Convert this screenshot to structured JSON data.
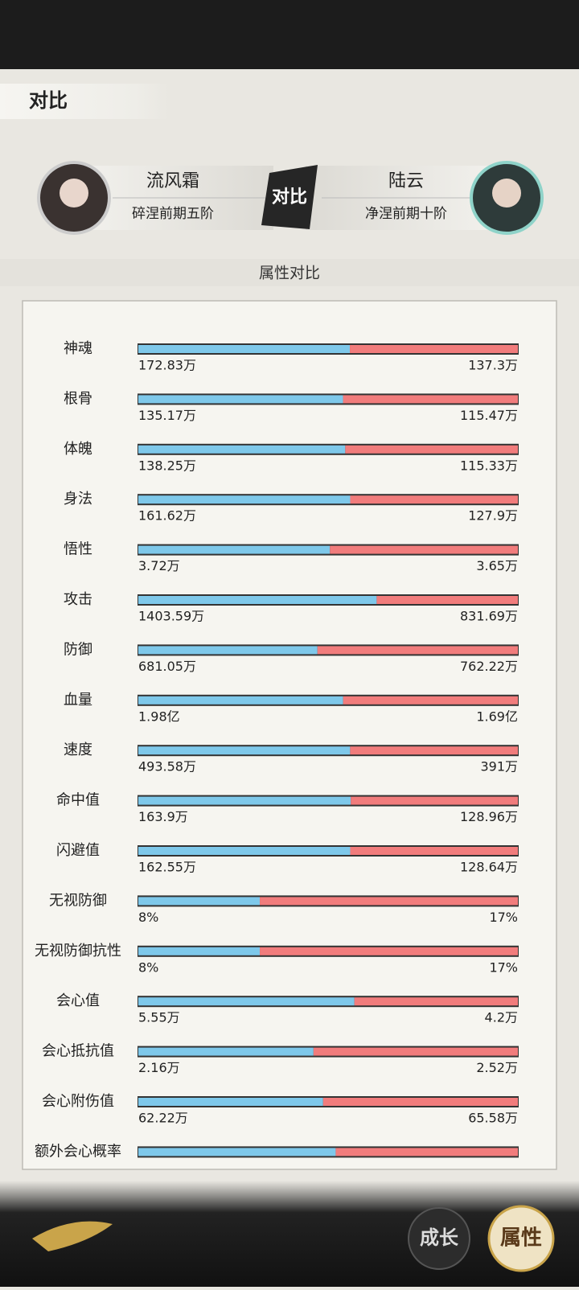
{
  "header": {
    "title": "对比"
  },
  "players": [
    {
      "name": "流风霜",
      "rank": "碎涅前期五阶"
    },
    {
      "name": "陆云",
      "rank": "净涅前期十阶"
    }
  ],
  "vs_badge": "对比",
  "section_title": "属性对比",
  "rows": [
    {
      "label": "神魂",
      "left": {
        "value": 172.83,
        "label": "172.83万"
      },
      "right": {
        "value": 137.3,
        "label": "137.3万"
      }
    },
    {
      "label": "根骨",
      "left": {
        "value": 135.17,
        "label": "135.17万"
      },
      "right": {
        "value": 115.47,
        "label": "115.47万"
      }
    },
    {
      "label": "体魄",
      "left": {
        "value": 138.25,
        "label": "138.25万"
      },
      "right": {
        "value": 115.33,
        "label": "115.33万"
      }
    },
    {
      "label": "身法",
      "left": {
        "value": 161.62,
        "label": "161.62万"
      },
      "right": {
        "value": 127.9,
        "label": "127.9万"
      }
    },
    {
      "label": "悟性",
      "left": {
        "value": 3.72,
        "label": "3.72万"
      },
      "right": {
        "value": 3.65,
        "label": "3.65万"
      }
    },
    {
      "label": "攻击",
      "left": {
        "value": 1403.59,
        "label": "1403.59万"
      },
      "right": {
        "value": 831.69,
        "label": "831.69万"
      }
    },
    {
      "label": "防御",
      "left": {
        "value": 681.05,
        "label": "681.05万"
      },
      "right": {
        "value": 762.22,
        "label": "762.22万"
      }
    },
    {
      "label": "血量",
      "left": {
        "value": 1.98,
        "label": "1.98亿"
      },
      "right": {
        "value": 1.69,
        "label": "1.69亿"
      }
    },
    {
      "label": "速度",
      "left": {
        "value": 493.58,
        "label": "493.58万"
      },
      "right": {
        "value": 391,
        "label": "391万"
      }
    },
    {
      "label": "命中值",
      "left": {
        "value": 163.9,
        "label": "163.9万"
      },
      "right": {
        "value": 128.96,
        "label": "128.96万"
      }
    },
    {
      "label": "闪避值",
      "left": {
        "value": 162.55,
        "label": "162.55万"
      },
      "right": {
        "value": 128.64,
        "label": "128.64万"
      }
    },
    {
      "label": "无视防御",
      "left": {
        "value": 8,
        "label": "8%"
      },
      "right": {
        "value": 17,
        "label": "17%"
      }
    },
    {
      "label": "无视防御抗性",
      "left": {
        "value": 8,
        "label": "8%"
      },
      "right": {
        "value": 17,
        "label": "17%"
      }
    },
    {
      "label": "会心值",
      "left": {
        "value": 5.55,
        "label": "5.55万"
      },
      "right": {
        "value": 4.2,
        "label": "4.2万"
      }
    },
    {
      "label": "会心抵抗值",
      "left": {
        "value": 2.16,
        "label": "2.16万"
      },
      "right": {
        "value": 2.52,
        "label": "2.52万"
      }
    },
    {
      "label": "会心附伤值",
      "left": {
        "value": 62.22,
        "label": "62.22万"
      },
      "right": {
        "value": 65.58,
        "label": "65.58万"
      }
    },
    {
      "label": "额外会心概率",
      "left": {
        "value": 52
      },
      "right": {
        "value": 48
      }
    }
  ],
  "buttons": [
    "成长",
    "属性"
  ]
}
